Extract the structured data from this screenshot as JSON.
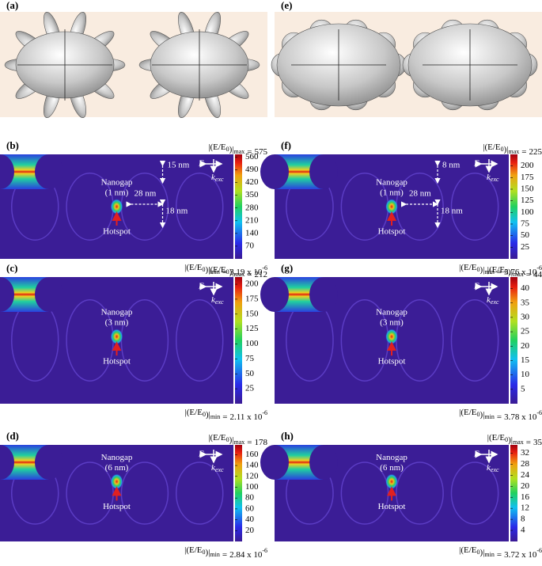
{
  "panels": {
    "a": {
      "label": "(a)"
    },
    "e": {
      "label": "(e)"
    }
  },
  "notation": {
    "open": "|(E/E",
    "zero": "0",
    "close": ")|",
    "max": "max",
    "min": "min",
    "equals": "="
  },
  "field": {
    "E": "E",
    "k": "k",
    "exc": "exc",
    "nanogap": "Nanogap",
    "hotspot": "Hotspot"
  },
  "field_panels": [
    {
      "label": "(b)",
      "gap": "(1 nm)",
      "max": 575,
      "min": "3.19 x 10",
      "min_exp": "-6",
      "ticks": [
        560,
        490,
        420,
        350,
        280,
        210,
        140,
        70
      ],
      "dims": [
        "15 nm",
        "28 nm",
        "18 nm"
      ]
    },
    {
      "label": "(f)",
      "gap": "(1 nm)",
      "max": 225,
      "min": "3.76 x 10",
      "min_exp": "-6",
      "ticks": [
        200,
        175,
        150,
        125,
        100,
        75,
        50,
        25
      ],
      "dims": [
        "8 nm",
        "28 nm",
        "18 nm"
      ]
    },
    {
      "label": "(c)",
      "gap": "(3 nm)",
      "max": 212,
      "min": "2.11 x 10",
      "min_exp": "-6",
      "ticks": [
        200,
        175,
        150,
        125,
        100,
        75,
        50,
        25
      ]
    },
    {
      "label": "(g)",
      "gap": "(3 nm)",
      "max": 44,
      "min": "3.78 x 10",
      "min_exp": "-6",
      "ticks": [
        40,
        35,
        30,
        25,
        20,
        15,
        10,
        5
      ]
    },
    {
      "label": "(d)",
      "gap": "(6 nm)",
      "max": 178,
      "min": "2.84 x 10",
      "min_exp": "-6",
      "ticks": [
        160,
        140,
        120,
        100,
        80,
        60,
        40,
        20
      ]
    },
    {
      "label": "(h)",
      "gap": "(6 nm)",
      "max": 35,
      "min": "3.72 x 10",
      "min_exp": "-6",
      "ticks": [
        32,
        28,
        24,
        20,
        16,
        12,
        8,
        4
      ]
    }
  ]
}
